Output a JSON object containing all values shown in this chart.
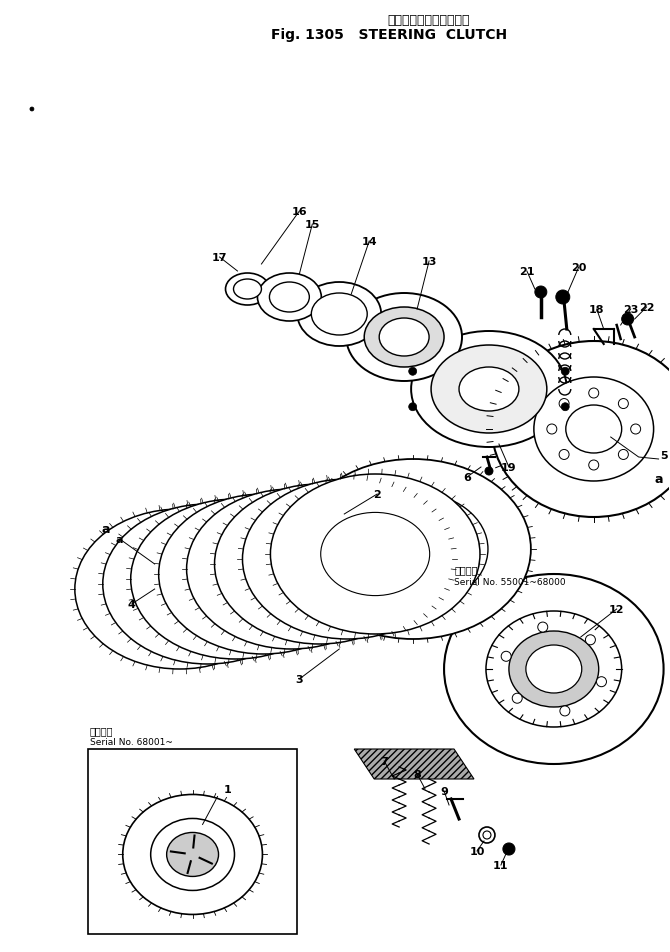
{
  "title_japanese": "ステアリング　クラッチ",
  "title_english": "Fig. 1305   STEERING  CLUTCH",
  "bg_color": "#ffffff",
  "fig_width": 6.7,
  "fig_height": 9.53,
  "dpi": 100,
  "serial_note_1_line1": "適用号機",
  "serial_note_1_line2": "Serial No. 55001~68000",
  "serial_note_2_line1": "適用号機",
  "serial_note_2_line2": "Serial No. 68001~"
}
